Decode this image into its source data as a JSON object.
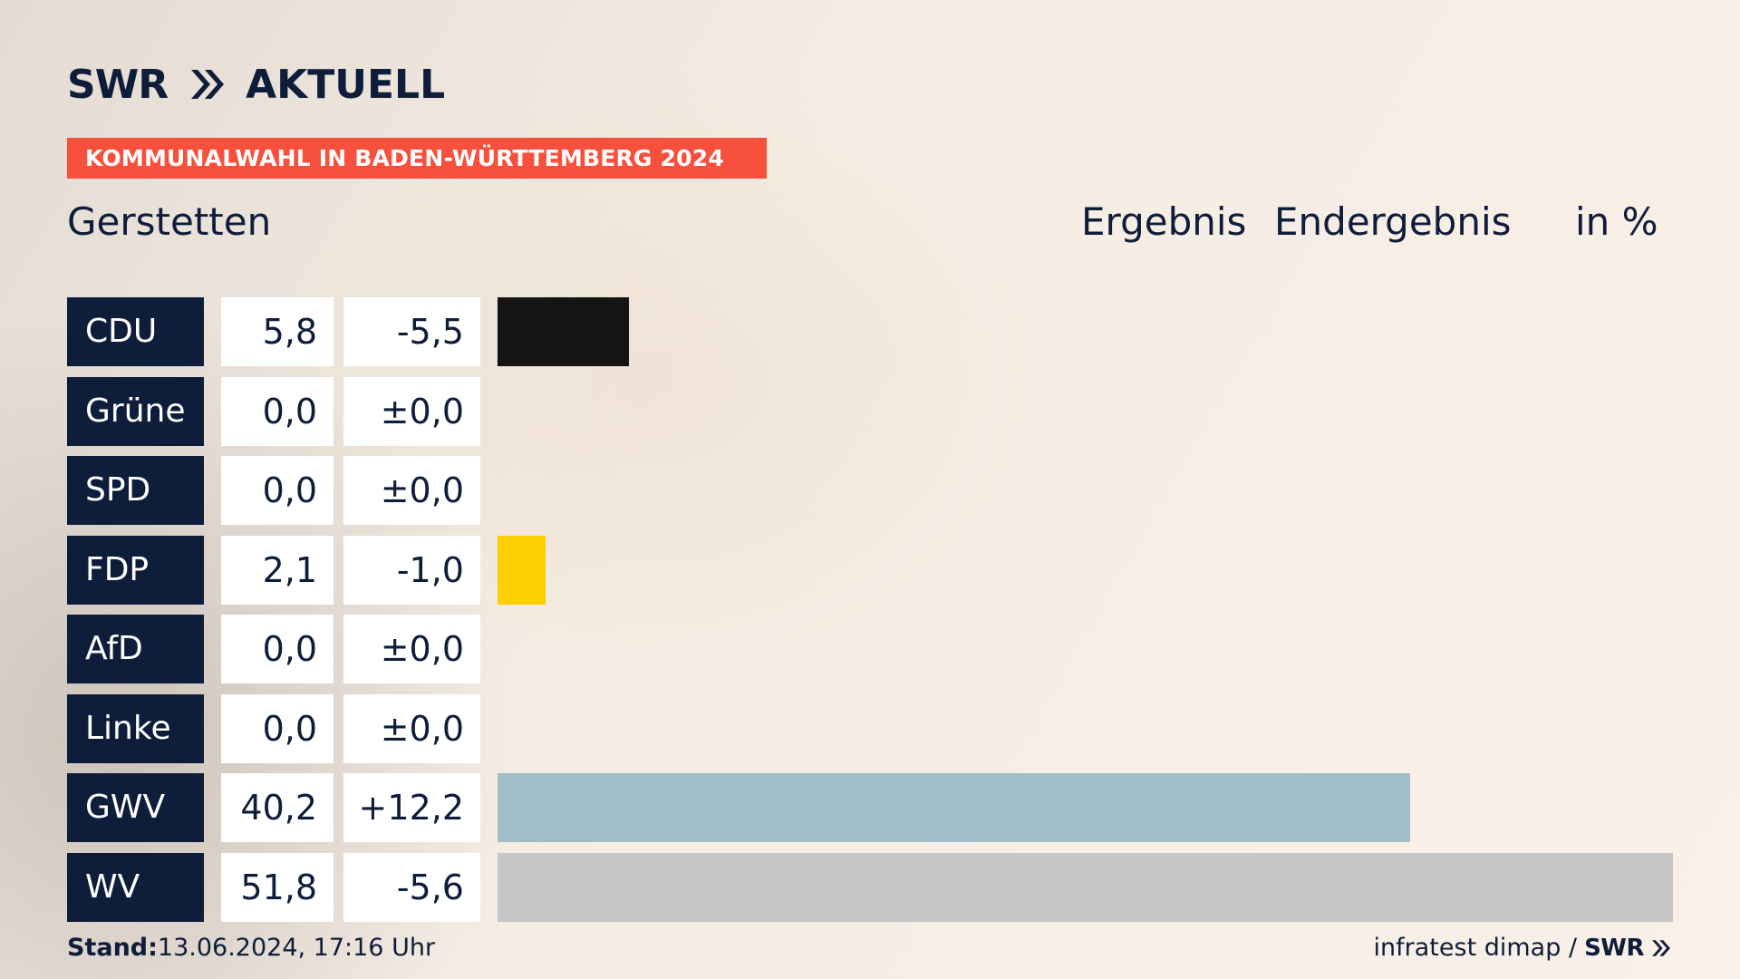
{
  "brand": {
    "logo_text": "SWR",
    "product_text": "AKTUELL"
  },
  "banner": {
    "text": "KOMMUNALWAHL IN BADEN-WÜRTTEMBERG 2024",
    "color": "#f7503d"
  },
  "header": {
    "place": "Gerstetten",
    "col_ergebnis": "Ergebnis",
    "col_endergebnis": "Endergebnis",
    "unit": "in %"
  },
  "chart_data": {
    "type": "bar",
    "orientation": "horizontal",
    "categories": [
      "CDU",
      "Grüne",
      "SPD",
      "FDP",
      "AfD",
      "Linke",
      "GWV",
      "WV"
    ],
    "values": [
      5.8,
      0.0,
      0.0,
      2.1,
      0.0,
      0.0,
      40.2,
      51.8
    ],
    "values_text": [
      "5,8",
      "0,0",
      "0,0",
      "2,1",
      "0,0",
      "0,0",
      "40,2",
      "51,8"
    ],
    "changes": [
      -5.5,
      0.0,
      0.0,
      -1.0,
      0.0,
      0.0,
      12.2,
      -5.6
    ],
    "changes_text": [
      "-5,5",
      "±0,0",
      "±0,0",
      "-1,0",
      "±0,0",
      "±0,0",
      "+12,2",
      "-5,6"
    ],
    "colors": [
      "#141414",
      "#4e9a32",
      "#d8232a",
      "#fcd000",
      "#1f9fe0",
      "#b82464",
      "#a1bdc7",
      "#c6c6c6"
    ],
    "xlim": [
      0,
      51.8
    ],
    "grid": false,
    "legend": "none"
  },
  "footer": {
    "stand_label": "Stand:",
    "stand_value": "13.06.2024, 17:16 Uhr",
    "source": "infratest dimap /",
    "source_brand": "SWR"
  }
}
